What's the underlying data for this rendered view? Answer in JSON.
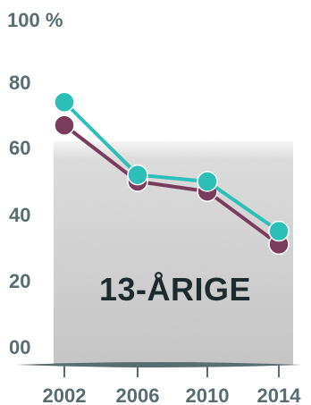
{
  "chart_data": {
    "type": "line",
    "title": "13-ÅRIGE",
    "ylabel": "",
    "xlabel": "",
    "y_unit_label": "100 %",
    "y_ticks": [
      "00",
      "20",
      "40",
      "60",
      "80"
    ],
    "ylim": [
      0,
      100
    ],
    "x": [
      "2002",
      "2006",
      "2010",
      "2014"
    ],
    "series": [
      {
        "values": [
          74,
          52,
          50,
          35
        ],
        "color": "#2bbfb8"
      },
      {
        "values": [
          67,
          50,
          47,
          31
        ],
        "color": "#7a3c5c"
      }
    ],
    "colors": {
      "axis": "#586d72",
      "title": "#1e2b2e",
      "panel": "#d2d2d2"
    }
  }
}
